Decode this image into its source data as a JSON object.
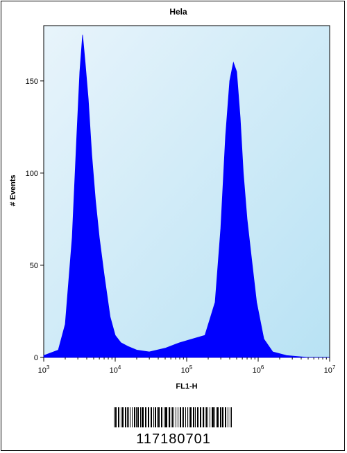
{
  "chart_data": {
    "type": "area",
    "title": "Hela",
    "xlabel": "FL1-H",
    "ylabel": "# Events",
    "x_scale": "log",
    "xlim": [
      1000,
      10000000
    ],
    "ylim": [
      0,
      180
    ],
    "x_ticks": [
      {
        "value": 1000,
        "base": "10",
        "exp": "3"
      },
      {
        "value": 10000,
        "base": "10",
        "exp": "4"
      },
      {
        "value": 100000,
        "base": "10",
        "exp": "5"
      },
      {
        "value": 1000000,
        "base": "10",
        "exp": "6"
      },
      {
        "value": 10000000,
        "base": "10",
        "exp": "7"
      }
    ],
    "y_ticks": [
      {
        "value": 0,
        "label": "0"
      },
      {
        "value": 50,
        "label": "50"
      },
      {
        "value": 100,
        "label": "100"
      },
      {
        "value": 150,
        "label": "150"
      }
    ],
    "grid": false,
    "series": [
      {
        "color": "#0000ff",
        "x": [
          1000,
          1600,
          2000,
          2500,
          2900,
          3200,
          3500,
          3800,
          4200,
          4700,
          5300,
          6000,
          7000,
          8500,
          10000,
          12000,
          15000,
          20000,
          30000,
          50000,
          80000,
          120000,
          180000,
          250000,
          300000,
          350000,
          400000,
          450000,
          500000,
          560000,
          620000,
          700000,
          800000,
          950000,
          1200000,
          1600000,
          2500000,
          5000000,
          10000000
        ],
        "y": [
          1,
          4,
          18,
          65,
          120,
          155,
          175,
          160,
          140,
          110,
          85,
          65,
          45,
          22,
          12,
          8,
          6,
          4,
          3,
          5,
          8,
          10,
          12,
          30,
          70,
          120,
          150,
          160,
          155,
          130,
          100,
          75,
          55,
          30,
          10,
          3,
          1,
          0,
          0
        ]
      }
    ],
    "background_gradient": [
      "#e8f4fb",
      "#b8e2f4"
    ]
  },
  "barcode": {
    "number": "117180701"
  }
}
